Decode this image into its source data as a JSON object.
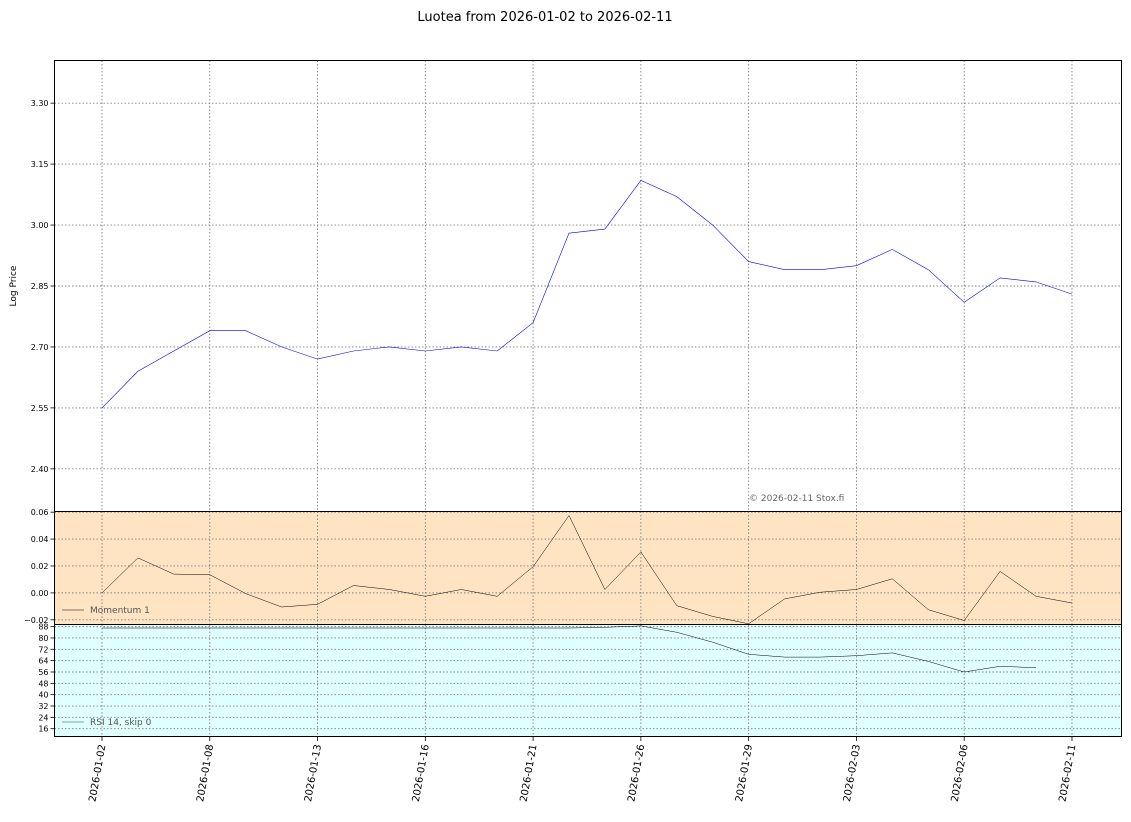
{
  "chart_data": [
    {
      "type": "line",
      "title": "Luotea from 2026-01-02 to 2026-02-11",
      "ylabel": "Log Price",
      "ylim": [
        2.295,
        3.405
      ],
      "yticks": [
        "3.30",
        "3.15",
        "3.00",
        "2.85",
        "2.70",
        "2.55",
        "2.40"
      ],
      "ytick_values": [
        3.3,
        3.15,
        3.0,
        2.85,
        2.7,
        2.55,
        2.4
      ],
      "grid": true,
      "series_color": "#0000ff",
      "copyright": "© 2026-02-11 Stox.fi",
      "x_labels": [
        "2026-01-02",
        "2026-01-08",
        "2026-01-13",
        "2026-01-16",
        "2026-01-21",
        "2026-01-26",
        "2026-01-29",
        "2026-02-03",
        "2026-02-06",
        "2026-02-11"
      ],
      "x_label_index": [
        0,
        3,
        6,
        9,
        12,
        15,
        18,
        21,
        24,
        27
      ],
      "values": [
        2.55,
        2.64,
        2.69,
        2.74,
        2.74,
        2.7,
        2.67,
        2.69,
        2.7,
        2.69,
        2.7,
        2.69,
        2.76,
        2.98,
        2.99,
        3.11,
        3.07,
        3.0,
        2.91,
        2.89,
        2.89,
        2.9,
        2.94,
        2.89,
        2.81,
        2.87,
        2.86,
        2.83
      ]
    },
    {
      "type": "line",
      "legend": "Momentum 1",
      "legend_position": "lower-left",
      "background": "#ffe4c4",
      "line_color": "#000000",
      "ylim": [
        -0.0235,
        0.0605
      ],
      "yticks": [
        "0.06",
        "0.04",
        "0.02",
        "0.00",
        "−0.02"
      ],
      "ytick_values": [
        0.06,
        0.04,
        0.02,
        0.0,
        -0.02
      ],
      "grid": true,
      "values": [
        0.0,
        0.026,
        0.014,
        0.0135,
        -0.0005,
        -0.0105,
        -0.0085,
        0.0055,
        0.0025,
        -0.0025,
        0.0025,
        -0.0025,
        0.0195,
        0.0575,
        0.0025,
        0.0305,
        -0.0095,
        -0.0175,
        -0.023,
        -0.0045,
        0.0005,
        0.0025,
        0.0105,
        -0.0125,
        -0.0205,
        0.016,
        -0.0025,
        -0.0075
      ]
    },
    {
      "type": "line",
      "legend": "RSI 14, skip 0",
      "legend_position": "lower-left",
      "background": "#e0ffff",
      "line_color": "#000000",
      "ylim": [
        10.5,
        89.5
      ],
      "yticks": [
        "88",
        "80",
        "72",
        "64",
        "56",
        "48",
        "40",
        "32",
        "24",
        "16"
      ],
      "ytick_values": [
        88,
        80,
        72,
        64,
        56,
        48,
        40,
        32,
        24,
        16
      ],
      "grid": true,
      "values": [
        87,
        87,
        87,
        87,
        87,
        87,
        87,
        87,
        87,
        87,
        87,
        87,
        87,
        87,
        87.5,
        88.5,
        84,
        77,
        68.5,
        66.5,
        66.5,
        67.5,
        69.5,
        63.5,
        56,
        60,
        59
      ]
    }
  ]
}
